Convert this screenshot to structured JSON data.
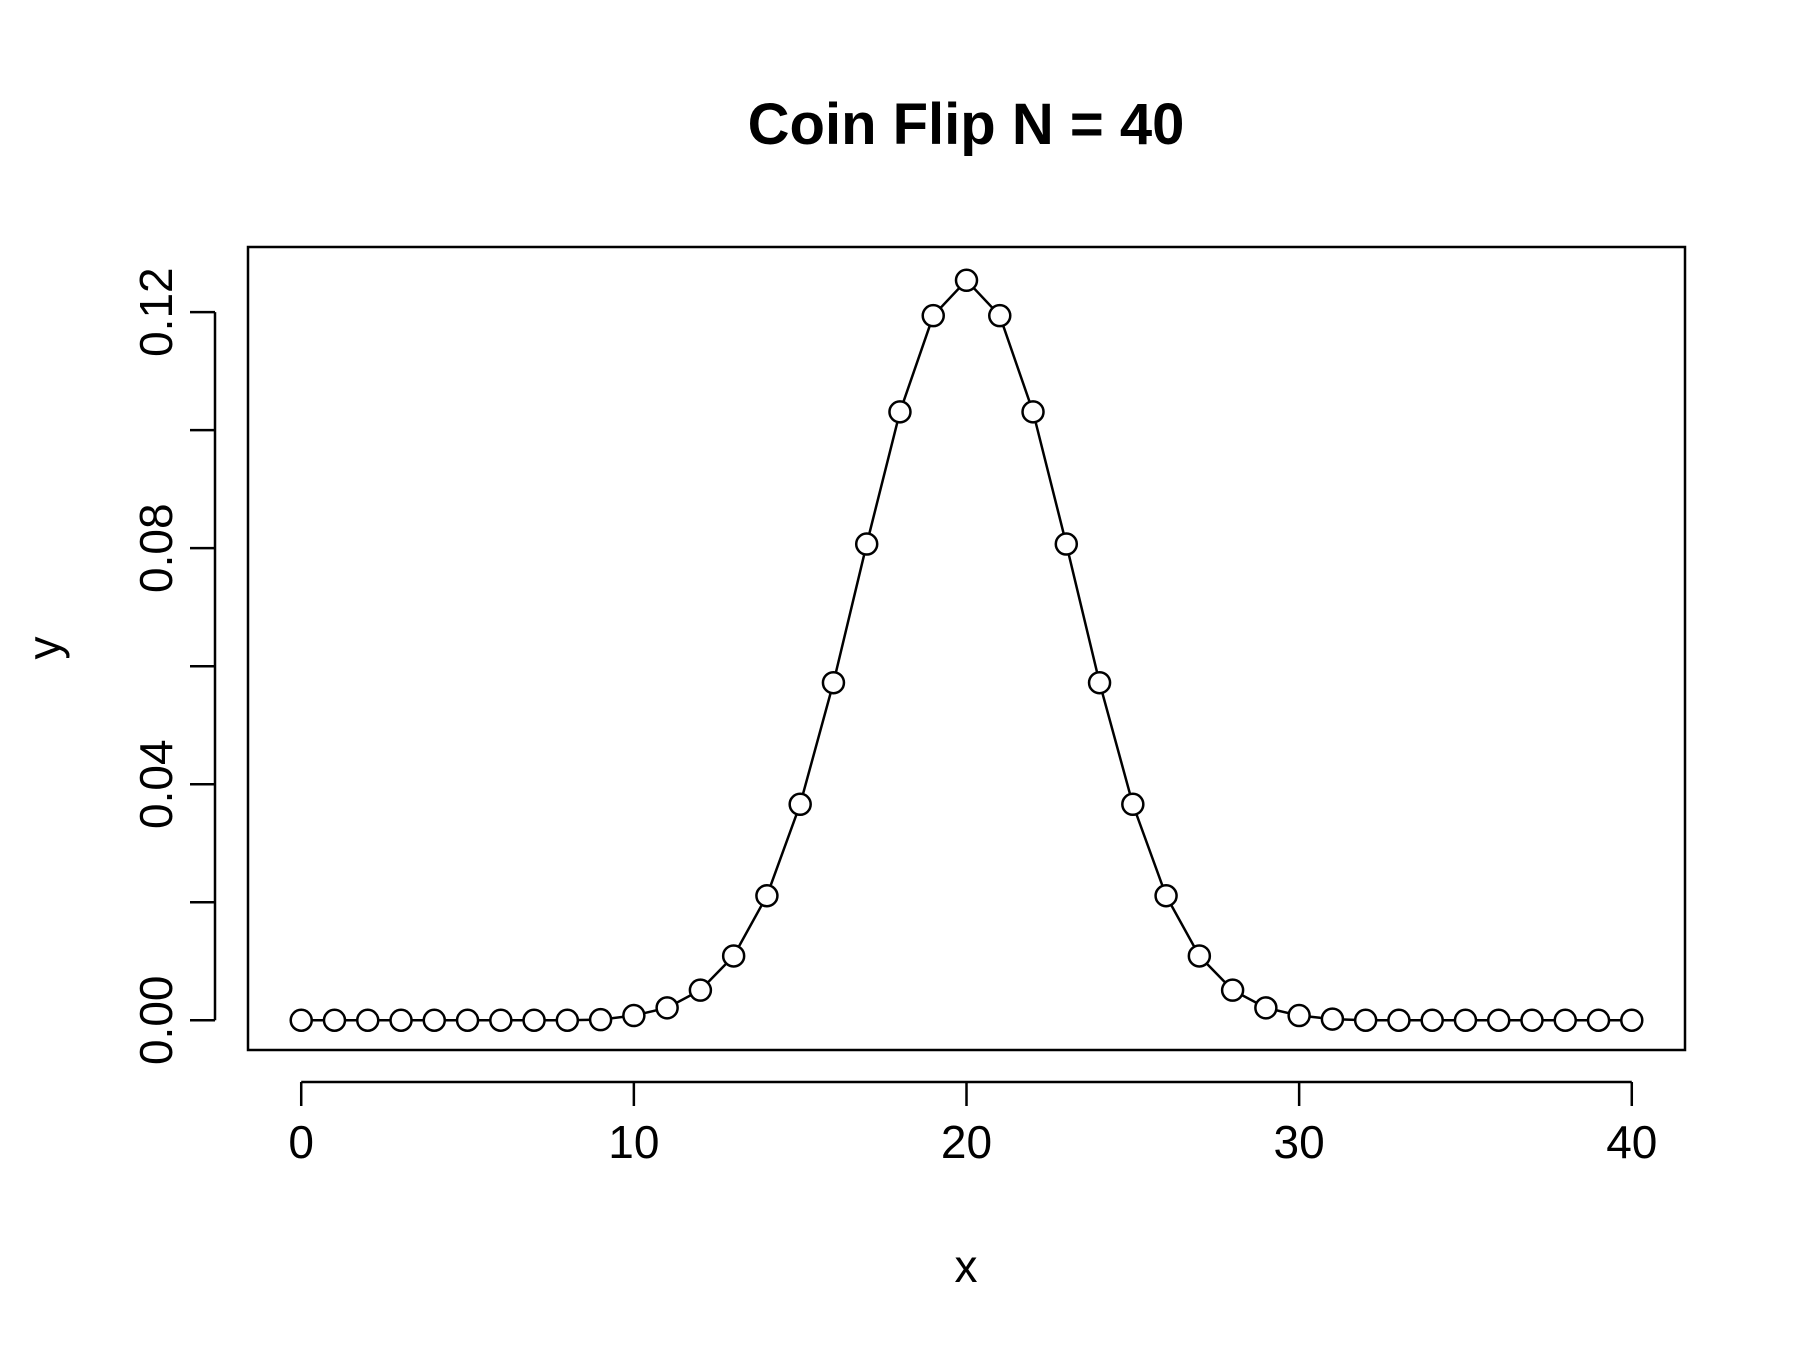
{
  "chart_data": {
    "type": "line",
    "title": "Coin Flip N = 40",
    "xlabel": "x",
    "ylabel": "y",
    "xlim": [
      -1.6,
      41.6
    ],
    "ylim": [
      -0.00504,
      0.13104
    ],
    "x_ticks": [
      0,
      10,
      20,
      30,
      40
    ],
    "x_tick_labels": [
      "0",
      "10",
      "20",
      "30",
      "40"
    ],
    "y_ticks": [
      0.0,
      0.02,
      0.04,
      0.06,
      0.08,
      0.1,
      0.12
    ],
    "y_tick_labels": [
      "0.00",
      "",
      "0.04",
      "",
      "0.08",
      "",
      "0.12"
    ],
    "grid": false,
    "legend": "none",
    "marker": "open-circle",
    "line_color": "#000000",
    "x": [
      0,
      1,
      2,
      3,
      4,
      5,
      6,
      7,
      8,
      9,
      10,
      11,
      12,
      13,
      14,
      15,
      16,
      17,
      18,
      19,
      20,
      21,
      22,
      23,
      24,
      25,
      26,
      27,
      28,
      29,
      30,
      31,
      32,
      33,
      34,
      35,
      36,
      37,
      38,
      39,
      40
    ],
    "y": [
      0.0,
      0.0,
      0.0,
      0.0,
      0.0,
      0.0,
      0.0,
      0.0,
      0.0,
      0.0001,
      0.0008,
      0.0021,
      0.0051,
      0.0109,
      0.0211,
      0.0366,
      0.0572,
      0.0807,
      0.1031,
      0.1194,
      0.1254,
      0.1194,
      0.1031,
      0.0807,
      0.0572,
      0.0366,
      0.0211,
      0.0109,
      0.0051,
      0.0021,
      0.0008,
      0.0002,
      0.0,
      0.0,
      0.0,
      0.0,
      0.0,
      0.0,
      0.0,
      0.0,
      0.0
    ]
  }
}
